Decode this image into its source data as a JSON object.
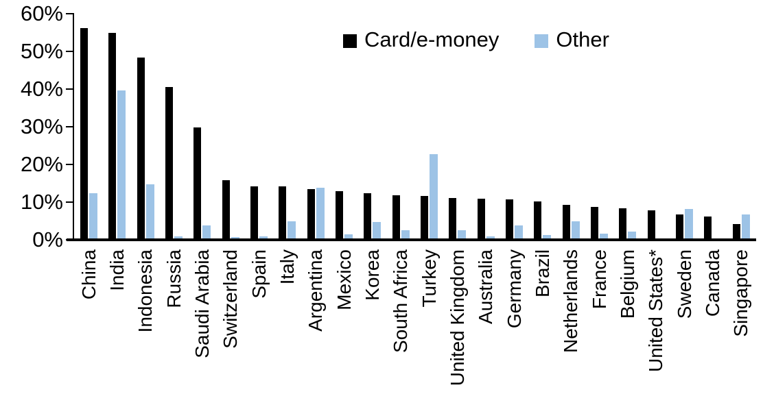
{
  "chart_data": {
    "type": "bar",
    "title": "",
    "xlabel": "",
    "ylabel": "",
    "ylim": [
      0,
      60
    ],
    "y_ticks": [
      "0%",
      "10%",
      "20%",
      "30%",
      "40%",
      "50%",
      "60%"
    ],
    "grid": false,
    "legend_position": "top-center",
    "categories": [
      "China",
      "India",
      "Indonesia",
      "Russia",
      "Saudi Arabia",
      "Switzerland",
      "Spain",
      "Italy",
      "Argentina",
      "Mexico",
      "Korea",
      "South Africa",
      "Turkey",
      "United Kingdom",
      "Australia",
      "Germany",
      "Brazil",
      "Netherlands",
      "France",
      "Belgium",
      "United States*",
      "Sweden",
      "Canada",
      "Singapore"
    ],
    "series": [
      {
        "name": "Card/e-money",
        "color": "#000000",
        "values": [
          56.2,
          54.9,
          48.4,
          40.6,
          29.8,
          15.8,
          14.2,
          14.1,
          13.5,
          13.0,
          12.3,
          11.9,
          11.6,
          11.1,
          10.9,
          10.7,
          10.1,
          9.3,
          8.7,
          8.3,
          7.9,
          6.8,
          6.1,
          4.1
        ]
      },
      {
        "name": "Other",
        "color": "#9DC3E6",
        "values": [
          12.4,
          39.6,
          14.7,
          0.9,
          3.9,
          0.7,
          1.0,
          4.9,
          13.9,
          1.4,
          4.8,
          2.6,
          22.7,
          2.5,
          1.0,
          3.9,
          1.3,
          5.0,
          1.7,
          2.1,
          0.4,
          8.2,
          0.0,
          6.8
        ]
      }
    ]
  }
}
